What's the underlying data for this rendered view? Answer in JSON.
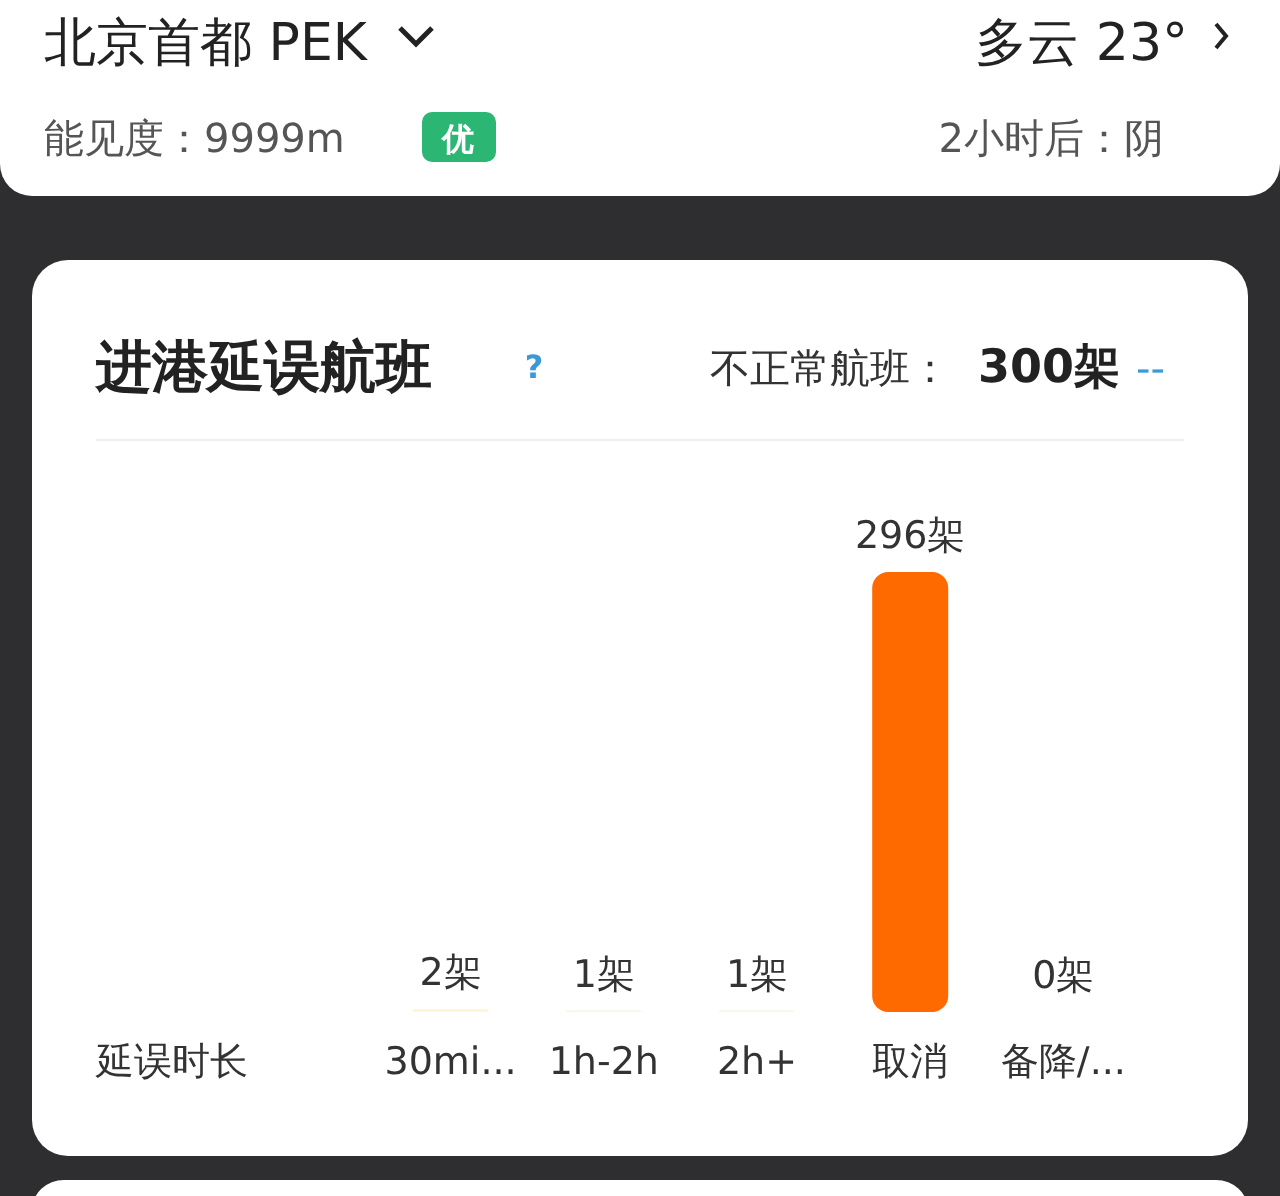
{
  "chart_data": {
    "type": "bar",
    "title": "进港延误航班",
    "xlabel": "延误时长",
    "categories": [
      "30mi...",
      "1h-2h",
      "2h+",
      "取消",
      "备降/..."
    ],
    "values": [
      2,
      1,
      1,
      296,
      0
    ],
    "value_labels": [
      "2架",
      "1架",
      "1架",
      "296架",
      "0架"
    ],
    "colors": [
      "#fdf6d8",
      "#fdf6d8",
      "#fdf6d8",
      "#ff6a00",
      "#e8ebf0"
    ],
    "annotations": [
      "北京首都 PEK",
      "多云 23°",
      "能见度：9999m",
      "优",
      "2小时后：阴",
      "?",
      "不正常航班：",
      "300架",
      "--"
    ]
  }
}
